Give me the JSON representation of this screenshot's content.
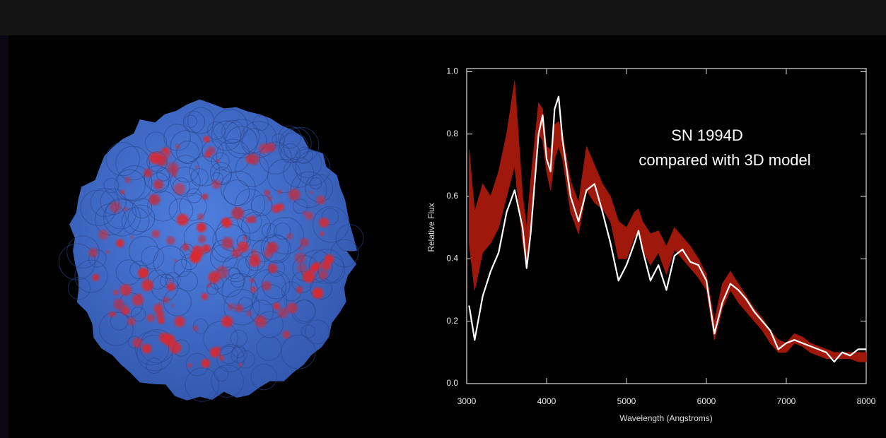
{
  "chart_data": {
    "type": "line",
    "annotations": [
      "SN 1994D",
      "compared with 3D model"
    ],
    "xlabel": "Wavelength (Angstroms)",
    "ylabel": "Relative Flux",
    "x": [
      3030,
      3100,
      3200,
      3300,
      3400,
      3500,
      3600,
      3700,
      3750,
      3800,
      3900,
      3950,
      4000,
      4050,
      4100,
      4150,
      4200,
      4300,
      4400,
      4500,
      4600,
      4700,
      4800,
      4900,
      5000,
      5100,
      5150,
      5200,
      5300,
      5400,
      5500,
      5600,
      5700,
      5800,
      5900,
      6000,
      6100,
      6200,
      6300,
      6400,
      6500,
      6600,
      6700,
      6800,
      6900,
      7000,
      7100,
      7200,
      7300,
      7400,
      7500,
      7600,
      7700,
      7800,
      7900,
      8000
    ],
    "series": [
      {
        "type": "band",
        "color": "#a0180c",
        "lower": [
          0.45,
          0.3,
          0.42,
          0.45,
          0.5,
          0.6,
          0.7,
          0.45,
          0.38,
          0.5,
          0.8,
          0.78,
          0.68,
          0.62,
          0.72,
          0.76,
          0.72,
          0.55,
          0.48,
          0.62,
          0.58,
          0.56,
          0.52,
          0.4,
          0.4,
          0.47,
          0.48,
          0.43,
          0.38,
          0.42,
          0.35,
          0.43,
          0.4,
          0.37,
          0.34,
          0.3,
          0.14,
          0.24,
          0.3,
          0.26,
          0.23,
          0.2,
          0.17,
          0.13,
          0.1,
          0.1,
          0.13,
          0.12,
          0.1,
          0.09,
          0.08,
          0.08,
          0.08,
          0.08,
          0.07,
          0.07
        ],
        "upper": [
          0.75,
          0.55,
          0.64,
          0.6,
          0.68,
          0.8,
          0.97,
          0.6,
          0.5,
          0.65,
          0.9,
          0.88,
          0.76,
          0.75,
          0.83,
          0.84,
          0.8,
          0.65,
          0.58,
          0.76,
          0.7,
          0.64,
          0.6,
          0.52,
          0.5,
          0.55,
          0.56,
          0.52,
          0.48,
          0.49,
          0.44,
          0.5,
          0.47,
          0.44,
          0.4,
          0.35,
          0.2,
          0.32,
          0.36,
          0.32,
          0.28,
          0.24,
          0.21,
          0.17,
          0.14,
          0.13,
          0.16,
          0.15,
          0.13,
          0.12,
          0.11,
          0.1,
          0.1,
          0.1,
          0.1,
          0.1
        ]
      },
      {
        "type": "line",
        "color": "#ffffff",
        "values": [
          0.25,
          0.14,
          0.28,
          0.36,
          0.42,
          0.55,
          0.62,
          0.5,
          0.37,
          0.48,
          0.8,
          0.86,
          0.72,
          0.68,
          0.88,
          0.92,
          0.78,
          0.6,
          0.52,
          0.62,
          0.64,
          0.55,
          0.45,
          0.33,
          0.38,
          0.45,
          0.49,
          0.43,
          0.33,
          0.38,
          0.3,
          0.41,
          0.43,
          0.39,
          0.38,
          0.33,
          0.16,
          0.26,
          0.32,
          0.3,
          0.27,
          0.23,
          0.2,
          0.17,
          0.11,
          0.13,
          0.14,
          0.13,
          0.12,
          0.11,
          0.1,
          0.07,
          0.1,
          0.09,
          0.11,
          0.11
        ]
      }
    ],
    "xlim": [
      3000,
      8000
    ],
    "xticks": [
      3000,
      4000,
      5000,
      6000,
      7000,
      8000
    ],
    "ylim": [
      0,
      1.01
    ],
    "yticks": [
      {
        "value": 0,
        "label": "0.0"
      },
      {
        "value": 0.2,
        "label": "0.2"
      },
      {
        "value": 0.4,
        "label": "0.4"
      },
      {
        "value": 0.6,
        "label": "0.6"
      },
      {
        "value": 0.8,
        "label": "0.8"
      },
      {
        "value": 1,
        "label": "1.0"
      }
    ]
  }
}
